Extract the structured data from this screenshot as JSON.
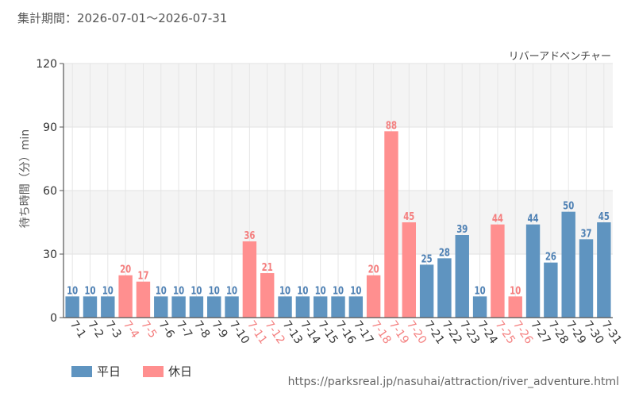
{
  "header": {
    "period_label": "集計期間：",
    "period_range": "2026-07-01〜2026-07-31"
  },
  "colors": {
    "weekday": "#5f94c0",
    "holiday": "#ff8f8f",
    "weekday_label": "#4f81b4",
    "holiday_label": "#f47f7f",
    "axis_tick_weekday": "#333333",
    "grid_band": "#f4f4f4"
  },
  "legend": {
    "weekday": "平日",
    "holiday": "休日"
  },
  "source_url": "https://parksreal.jp/nasuhai/attraction/river_adventure.html",
  "chart_data": {
    "type": "bar",
    "title": "リバーアドベンチャー",
    "xlabel": "",
    "ylabel": "待ち時間（分）min",
    "ylim": [
      0,
      120
    ],
    "yticks": [
      0,
      30,
      60,
      90,
      120
    ],
    "grid": true,
    "legend_position": "bottom-left",
    "categories": [
      "7-1",
      "7-2",
      "7-3",
      "7-4",
      "7-5",
      "7-6",
      "7-7",
      "7-8",
      "7-9",
      "7-10",
      "7-11",
      "7-12",
      "7-13",
      "7-14",
      "7-15",
      "7-16",
      "7-17",
      "7-18",
      "7-19",
      "7-20",
      "7-21",
      "7-22",
      "7-23",
      "7-24",
      "7-25",
      "7-26",
      "7-27",
      "7-28",
      "7-29",
      "7-30",
      "7-31"
    ],
    "values": [
      10,
      10,
      10,
      20,
      17,
      10,
      10,
      10,
      10,
      10,
      36,
      21,
      10,
      10,
      10,
      10,
      10,
      20,
      88,
      45,
      25,
      28,
      39,
      10,
      44,
      10,
      44,
      26,
      50,
      37,
      45
    ],
    "day_type": [
      "weekday",
      "weekday",
      "weekday",
      "holiday",
      "holiday",
      "weekday",
      "weekday",
      "weekday",
      "weekday",
      "weekday",
      "holiday",
      "holiday",
      "weekday",
      "weekday",
      "weekday",
      "weekday",
      "weekday",
      "holiday",
      "holiday",
      "holiday",
      "weekday",
      "weekday",
      "weekday",
      "weekday",
      "holiday",
      "holiday",
      "weekday",
      "weekday",
      "weekday",
      "weekday",
      "weekday"
    ]
  }
}
